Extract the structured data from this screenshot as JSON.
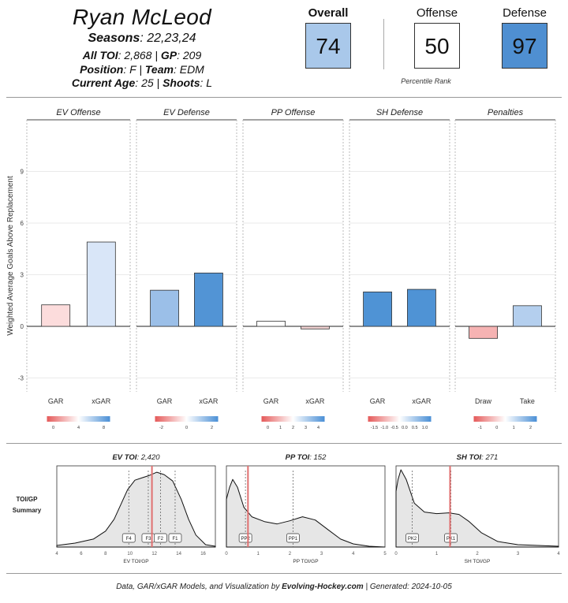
{
  "player": {
    "name": "Ryan McLeod",
    "seasons_label": "Seasons",
    "seasons": "22,23,24",
    "all_toi_label": "All TOI",
    "all_toi": "2,868",
    "gp_label": "GP",
    "gp": "209",
    "position_label": "Position",
    "position": "F",
    "team_label": "Team",
    "team": "EDM",
    "age_label": "Current Age",
    "age": "25",
    "shoots_label": "Shoots",
    "shoots": "L"
  },
  "ranks": {
    "overall_label": "Overall",
    "overall": "74",
    "offense_label": "Offense",
    "offense": "50",
    "defense_label": "Defense",
    "defense": "97",
    "caption": "Percentile Rank",
    "colors": {
      "overall": "#a9c8ea",
      "offense": "#ffffff",
      "defense": "#4f8fd1"
    }
  },
  "chart_data": [
    {
      "type": "bar",
      "ylabel": "Weighted Average Goals Above Replacement",
      "ylim": [
        -3.8,
        12
      ],
      "yticks": [
        -3,
        0,
        3,
        6,
        9
      ],
      "panels": [
        {
          "title": "EV Offense",
          "categories": [
            "GAR",
            "xGAR"
          ],
          "values": [
            1.25,
            4.9
          ],
          "colors": [
            "#fcdcdc",
            "#d9e6f8"
          ],
          "scale": {
            "colors": [
              "#e55a5a",
              "#ffffff",
              "#4a8fd6"
            ],
            "ticks": [
              "0",
              "4",
              "8"
            ]
          }
        },
        {
          "title": "EV Defense",
          "categories": [
            "GAR",
            "xGAR"
          ],
          "values": [
            2.1,
            3.1
          ],
          "colors": [
            "#9bbfe8",
            "#5294d5"
          ],
          "scale": {
            "colors": [
              "#e55a5a",
              "#ffffff",
              "#4a8fd6"
            ],
            "ticks": [
              "-2",
              "0",
              "2"
            ]
          }
        },
        {
          "title": "PP Offense",
          "categories": [
            "GAR",
            "xGAR"
          ],
          "values": [
            0.3,
            -0.15
          ],
          "colors": [
            "#ffffff",
            "#f3d3d3"
          ],
          "scale": {
            "colors": [
              "#e55a5a",
              "#ffffff",
              "#4a8fd6"
            ],
            "ticks": [
              "0",
              "1",
              "2",
              "3",
              "4"
            ]
          }
        },
        {
          "title": "SH Defense",
          "categories": [
            "GAR",
            "xGAR"
          ],
          "values": [
            2.0,
            2.15
          ],
          "colors": [
            "#4f93d5",
            "#4f93d5"
          ],
          "scale": {
            "colors": [
              "#e55a5a",
              "#ffffff",
              "#4a8fd6"
            ],
            "ticks": [
              "-1.5",
              "-1.0",
              "-0.5",
              "0.0",
              "0.5",
              "1.0"
            ]
          }
        },
        {
          "title": "Penalties",
          "categories": [
            "Draw",
            "Take"
          ],
          "values": [
            -0.7,
            1.2
          ],
          "colors": [
            "#f6b3b3",
            "#b4cfee"
          ],
          "scale": {
            "colors": [
              "#e55a5a",
              "#ffffff",
              "#4a8fd6"
            ],
            "ticks": [
              "-1",
              "0",
              "1",
              "2"
            ]
          }
        }
      ]
    },
    {
      "type": "area",
      "summary_label": "TOI/GP Summary",
      "panels": [
        {
          "title_label": "EV TOI",
          "title_value": "2,420",
          "xlabel": "EV TOI/GP",
          "xlim": [
            4,
            17
          ],
          "xticks": [
            "4",
            "6",
            "8",
            "10",
            "12",
            "14",
            "16"
          ],
          "density": [
            [
              4,
              0.02
            ],
            [
              5.5,
              0.05
            ],
            [
              7,
              0.1
            ],
            [
              8,
              0.2
            ],
            [
              8.7,
              0.35
            ],
            [
              9.3,
              0.55
            ],
            [
              9.8,
              0.72
            ],
            [
              10.4,
              0.84
            ],
            [
              11,
              0.87
            ],
            [
              11.6,
              0.9
            ],
            [
              12.2,
              0.94
            ],
            [
              12.8,
              0.91
            ],
            [
              13.5,
              0.83
            ],
            [
              14.2,
              0.6
            ],
            [
              14.8,
              0.35
            ],
            [
              15.4,
              0.15
            ],
            [
              16.2,
              0.03
            ],
            [
              17,
              0.01
            ]
          ],
          "player_value": 11.8,
          "markers": [
            {
              "label": "F4",
              "x": 9.9
            },
            {
              "label": "F3",
              "x": 11.5
            },
            {
              "label": "F2",
              "x": 12.5
            },
            {
              "label": "F1",
              "x": 13.7
            }
          ]
        },
        {
          "title_label": "PP TOI",
          "title_value": "152",
          "xlabel": "PP TOI/GP",
          "xlim": [
            0,
            5
          ],
          "xticks": [
            "0",
            "1",
            "2",
            "3",
            "4",
            "5"
          ],
          "density": [
            [
              0,
              0.6
            ],
            [
              0.1,
              0.75
            ],
            [
              0.2,
              0.85
            ],
            [
              0.35,
              0.75
            ],
            [
              0.55,
              0.5
            ],
            [
              0.8,
              0.38
            ],
            [
              1.2,
              0.32
            ],
            [
              1.6,
              0.29
            ],
            [
              2.0,
              0.33
            ],
            [
              2.4,
              0.38
            ],
            [
              2.8,
              0.34
            ],
            [
              3.2,
              0.22
            ],
            [
              3.6,
              0.1
            ],
            [
              4.0,
              0.04
            ],
            [
              4.5,
              0.01
            ],
            [
              5,
              0.0
            ]
          ],
          "player_value": 0.68,
          "markers": [
            {
              "label": "PP2",
              "x": 0.6
            },
            {
              "label": "PP1",
              "x": 2.1
            }
          ]
        },
        {
          "title_label": "SH TOI",
          "title_value": "271",
          "xlabel": "SH TOI/GP",
          "xlim": [
            0,
            4
          ],
          "xticks": [
            "0",
            "1",
            "2",
            "3",
            "4"
          ],
          "density": [
            [
              0,
              0.7
            ],
            [
              0.05,
              0.85
            ],
            [
              0.12,
              0.97
            ],
            [
              0.25,
              0.85
            ],
            [
              0.45,
              0.55
            ],
            [
              0.7,
              0.44
            ],
            [
              1.0,
              0.42
            ],
            [
              1.3,
              0.43
            ],
            [
              1.55,
              0.41
            ],
            [
              1.8,
              0.32
            ],
            [
              2.1,
              0.18
            ],
            [
              2.5,
              0.07
            ],
            [
              3.0,
              0.03
            ],
            [
              4,
              0.01
            ]
          ],
          "player_value": 1.33,
          "markers": [
            {
              "label": "PK2",
              "x": 0.4
            },
            {
              "label": "PK1",
              "x": 1.35
            }
          ]
        }
      ]
    }
  ],
  "footer": {
    "prefix": "Data, GAR/xGAR Models, and Visualization by",
    "brand": "Evolving-Hockey.com",
    "generated": "| Generated: 2024-10-05"
  }
}
